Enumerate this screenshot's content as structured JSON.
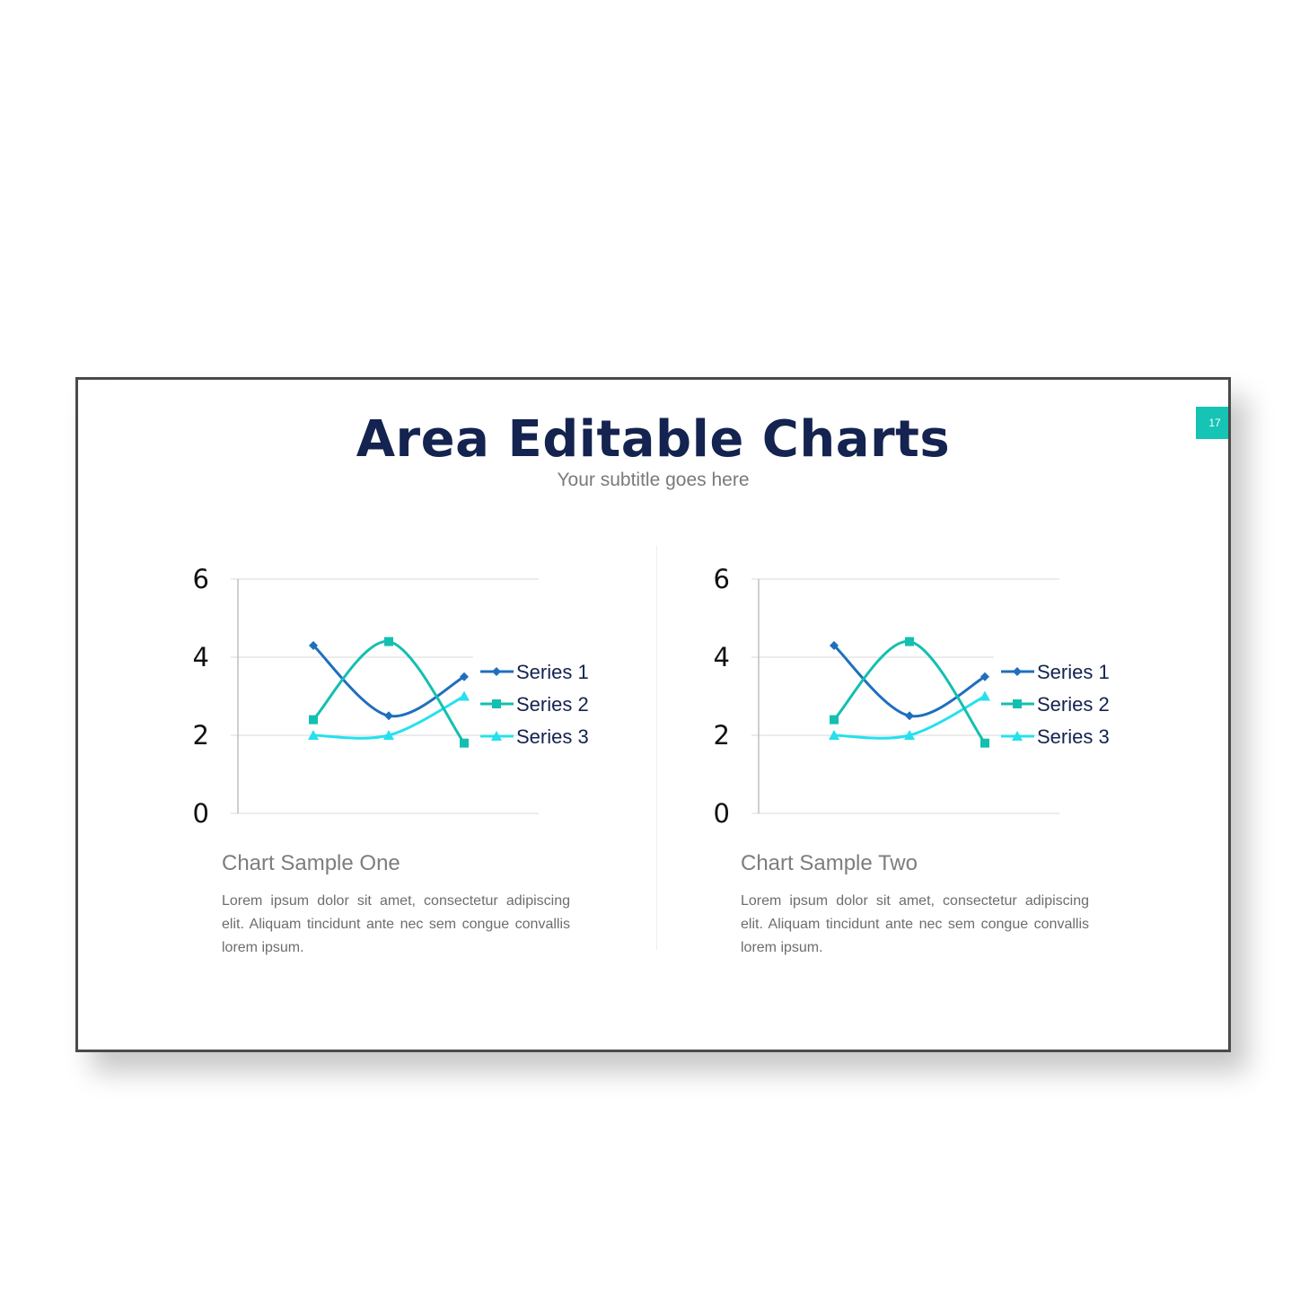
{
  "slide": {
    "title": "Area Editable Charts",
    "subtitle": "Your subtitle goes here",
    "page_number": "17",
    "accent_color": "#15c4b4"
  },
  "cards": [
    {
      "caption": "Chart Sample One",
      "description": "Lorem ipsum dolor sit amet, consectetur adipiscing elit. Aliquam tincidunt ante nec sem congue convallis lorem ipsum."
    },
    {
      "caption": "Chart Sample Two",
      "description": "Lorem ipsum dolor sit amet, consectetur adipiscing elit. Aliquam tincidunt ante nec sem congue convallis lorem ipsum."
    }
  ],
  "chart_data": [
    {
      "type": "line",
      "smooth": true,
      "categories": [
        "",
        "",
        ""
      ],
      "ylim": [
        0,
        6
      ],
      "yticks": [
        0,
        2,
        4,
        6
      ],
      "grid": true,
      "legend": "right",
      "series": [
        {
          "name": "Series 1",
          "values": [
            4.3,
            2.5,
            3.5
          ],
          "color": "#1f6fbe",
          "marker": "diamond"
        },
        {
          "name": "Series 2",
          "values": [
            2.4,
            4.4,
            1.8
          ],
          "color": "#14bfb0",
          "marker": "square"
        },
        {
          "name": "Series 3",
          "values": [
            2.0,
            2.0,
            3.0
          ],
          "color": "#26e0ee",
          "marker": "triangle"
        }
      ]
    },
    {
      "type": "line",
      "smooth": true,
      "categories": [
        "",
        "",
        ""
      ],
      "ylim": [
        0,
        6
      ],
      "yticks": [
        0,
        2,
        4,
        6
      ],
      "grid": true,
      "legend": "right",
      "series": [
        {
          "name": "Series 1",
          "values": [
            4.3,
            2.5,
            3.5
          ],
          "color": "#1f6fbe",
          "marker": "diamond"
        },
        {
          "name": "Series 2",
          "values": [
            2.4,
            4.4,
            1.8
          ],
          "color": "#14bfb0",
          "marker": "square"
        },
        {
          "name": "Series 3",
          "values": [
            2.0,
            2.0,
            3.0
          ],
          "color": "#26e0ee",
          "marker": "triangle"
        }
      ]
    }
  ]
}
